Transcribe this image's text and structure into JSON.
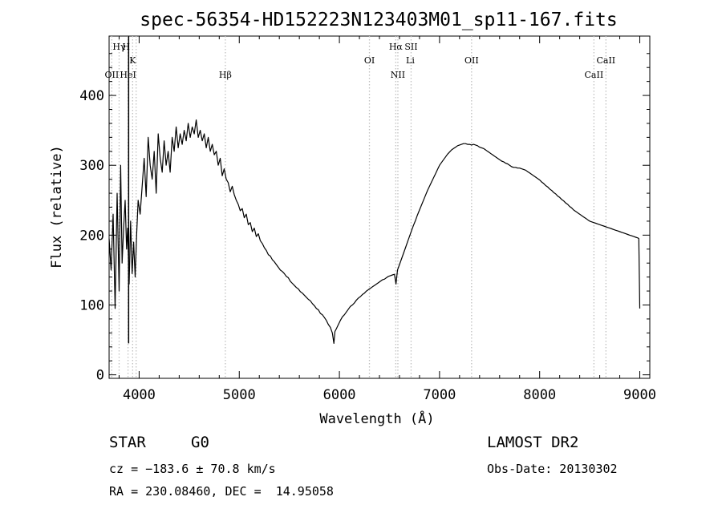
{
  "chart_data": {
    "type": "line",
    "title": "spec-56354-HD152223N123403M01_sp11-167.fits",
    "xlabel": "Wavelength (Å)",
    "ylabel": "Flux (relative)",
    "xlim": [
      3700,
      9100
    ],
    "ylim": [
      -5,
      485
    ],
    "xticks": [
      4000,
      5000,
      6000,
      7000,
      8000,
      9000
    ],
    "yticks": [
      0,
      100,
      200,
      300,
      400
    ],
    "grid": false,
    "series": [
      {
        "points": [
          [
            3700,
            195
          ],
          [
            3720,
            150
          ],
          [
            3740,
            230
          ],
          [
            3760,
            95
          ],
          [
            3780,
            260
          ],
          [
            3800,
            120
          ],
          [
            3815,
            300
          ],
          [
            3830,
            160
          ],
          [
            3845,
            210
          ],
          [
            3860,
            250
          ],
          [
            3875,
            180
          ],
          [
            3885,
            210
          ],
          [
            3900,
            130
          ],
          [
            3915,
            220
          ],
          [
            3930,
            145
          ],
          [
            3945,
            190
          ],
          [
            3960,
            140
          ],
          [
            3975,
            200
          ],
          [
            3990,
            250
          ],
          [
            4010,
            230
          ],
          [
            4030,
            270
          ],
          [
            4050,
            310
          ],
          [
            4070,
            255
          ],
          [
            4090,
            340
          ],
          [
            4110,
            300
          ],
          [
            4130,
            280
          ],
          [
            4150,
            320
          ],
          [
            4170,
            260
          ],
          [
            4190,
            345
          ],
          [
            4210,
            310
          ],
          [
            4230,
            290
          ],
          [
            4250,
            335
          ],
          [
            4270,
            300
          ],
          [
            4290,
            320
          ],
          [
            4310,
            290
          ],
          [
            4330,
            340
          ],
          [
            4350,
            320
          ],
          [
            4370,
            355
          ],
          [
            4390,
            325
          ],
          [
            4410,
            345
          ],
          [
            4430,
            330
          ],
          [
            4450,
            350
          ],
          [
            4470,
            335
          ],
          [
            4490,
            360
          ],
          [
            4510,
            340
          ],
          [
            4530,
            355
          ],
          [
            4550,
            345
          ],
          [
            4570,
            365
          ],
          [
            4590,
            340
          ],
          [
            4610,
            350
          ],
          [
            4630,
            335
          ],
          [
            4650,
            345
          ],
          [
            4670,
            325
          ],
          [
            4690,
            340
          ],
          [
            4710,
            320
          ],
          [
            4730,
            330
          ],
          [
            4750,
            315
          ],
          [
            4770,
            320
          ],
          [
            4790,
            300
          ],
          [
            4810,
            310
          ],
          [
            4830,
            285
          ],
          [
            4850,
            295
          ],
          [
            4870,
            280
          ],
          [
            4890,
            275
          ],
          [
            4910,
            262
          ],
          [
            4930,
            270
          ],
          [
            4950,
            258
          ],
          [
            4970,
            250
          ],
          [
            4990,
            244
          ],
          [
            5010,
            235
          ],
          [
            5030,
            238
          ],
          [
            5050,
            225
          ],
          [
            5070,
            230
          ],
          [
            5090,
            215
          ],
          [
            5110,
            218
          ],
          [
            5130,
            205
          ],
          [
            5150,
            210
          ],
          [
            5170,
            198
          ],
          [
            5190,
            202
          ],
          [
            5210,
            192
          ],
          [
            5230,
            188
          ],
          [
            5250,
            182
          ],
          [
            5270,
            178
          ],
          [
            5290,
            172
          ],
          [
            5310,
            170
          ],
          [
            5330,
            165
          ],
          [
            5350,
            162
          ],
          [
            5370,
            158
          ],
          [
            5390,
            154
          ],
          [
            5410,
            150
          ],
          [
            5430,
            148
          ],
          [
            5450,
            145
          ],
          [
            5470,
            141
          ],
          [
            5490,
            139
          ],
          [
            5510,
            134
          ],
          [
            5530,
            131
          ],
          [
            5550,
            128
          ],
          [
            5570,
            125
          ],
          [
            5590,
            123
          ],
          [
            5610,
            119
          ],
          [
            5630,
            117
          ],
          [
            5650,
            114
          ],
          [
            5670,
            111
          ],
          [
            5690,
            108
          ],
          [
            5710,
            106
          ],
          [
            5730,
            102
          ],
          [
            5750,
            99
          ],
          [
            5770,
            95
          ],
          [
            5790,
            93
          ],
          [
            5810,
            88
          ],
          [
            5830,
            86
          ],
          [
            5850,
            82
          ],
          [
            5870,
            78
          ],
          [
            5890,
            72
          ],
          [
            5910,
            68
          ],
          [
            5930,
            60
          ],
          [
            5945,
            45
          ],
          [
            5955,
            62
          ],
          [
            5970,
            66
          ],
          [
            5990,
            72
          ],
          [
            6010,
            78
          ],
          [
            6030,
            83
          ],
          [
            6050,
            86
          ],
          [
            6070,
            90
          ],
          [
            6090,
            94
          ],
          [
            6110,
            98
          ],
          [
            6130,
            100
          ],
          [
            6150,
            103
          ],
          [
            6170,
            107
          ],
          [
            6190,
            110
          ],
          [
            6210,
            112
          ],
          [
            6230,
            115
          ],
          [
            6250,
            117
          ],
          [
            6270,
            120
          ],
          [
            6290,
            122
          ],
          [
            6310,
            124
          ],
          [
            6330,
            126
          ],
          [
            6350,
            128
          ],
          [
            6370,
            130
          ],
          [
            6390,
            132
          ],
          [
            6410,
            134
          ],
          [
            6430,
            136
          ],
          [
            6450,
            137
          ],
          [
            6470,
            139
          ],
          [
            6490,
            141
          ],
          [
            6510,
            142
          ],
          [
            6530,
            143
          ],
          [
            6550,
            144
          ],
          [
            6565,
            130
          ],
          [
            6580,
            150
          ],
          [
            6600,
            158
          ],
          [
            6620,
            166
          ],
          [
            6640,
            174
          ],
          [
            6660,
            182
          ],
          [
            6680,
            190
          ],
          [
            6700,
            198
          ],
          [
            6720,
            206
          ],
          [
            6740,
            214
          ],
          [
            6760,
            221
          ],
          [
            6780,
            229
          ],
          [
            6800,
            236
          ],
          [
            6820,
            243
          ],
          [
            6840,
            250
          ],
          [
            6860,
            257
          ],
          [
            6880,
            264
          ],
          [
            6900,
            270
          ],
          [
            6920,
            276
          ],
          [
            6940,
            282
          ],
          [
            6960,
            288
          ],
          [
            6980,
            294
          ],
          [
            7000,
            300
          ],
          [
            7020,
            304
          ],
          [
            7040,
            308
          ],
          [
            7060,
            312
          ],
          [
            7080,
            316
          ],
          [
            7100,
            319
          ],
          [
            7120,
            322
          ],
          [
            7140,
            324
          ],
          [
            7160,
            326
          ],
          [
            7180,
            328
          ],
          [
            7200,
            329
          ],
          [
            7220,
            330
          ],
          [
            7240,
            331
          ],
          [
            7260,
            331
          ],
          [
            7280,
            330
          ],
          [
            7300,
            330
          ],
          [
            7320,
            329
          ],
          [
            7340,
            330
          ],
          [
            7360,
            329
          ],
          [
            7380,
            328
          ],
          [
            7400,
            326
          ],
          [
            7420,
            325
          ],
          [
            7440,
            324
          ],
          [
            7460,
            322
          ],
          [
            7480,
            320
          ],
          [
            7500,
            318
          ],
          [
            7520,
            316
          ],
          [
            7540,
            314
          ],
          [
            7560,
            312
          ],
          [
            7580,
            310
          ],
          [
            7600,
            308
          ],
          [
            7620,
            306
          ],
          [
            7640,
            305
          ],
          [
            7660,
            303
          ],
          [
            7680,
            302
          ],
          [
            7700,
            300
          ],
          [
            7720,
            298
          ],
          [
            7740,
            297
          ],
          [
            7760,
            297
          ],
          [
            7780,
            296
          ],
          [
            7800,
            296
          ],
          [
            7820,
            295
          ],
          [
            7840,
            294
          ],
          [
            7860,
            293
          ],
          [
            7880,
            291
          ],
          [
            7900,
            289
          ],
          [
            7920,
            287
          ],
          [
            7940,
            285
          ],
          [
            7960,
            283
          ],
          [
            7980,
            281
          ],
          [
            8000,
            279
          ],
          [
            8020,
            276
          ],
          [
            8040,
            274
          ],
          [
            8060,
            271
          ],
          [
            8080,
            269
          ],
          [
            8100,
            266
          ],
          [
            8120,
            264
          ],
          [
            8140,
            261
          ],
          [
            8160,
            259
          ],
          [
            8180,
            256
          ],
          [
            8200,
            254
          ],
          [
            8220,
            251
          ],
          [
            8240,
            249
          ],
          [
            8260,
            246
          ],
          [
            8280,
            244
          ],
          [
            8300,
            241
          ],
          [
            8320,
            239
          ],
          [
            8340,
            236
          ],
          [
            8360,
            234
          ],
          [
            8380,
            232
          ],
          [
            8400,
            230
          ],
          [
            8420,
            228
          ],
          [
            8440,
            226
          ],
          [
            8460,
            224
          ],
          [
            8480,
            222
          ],
          [
            8500,
            220
          ],
          [
            8520,
            219
          ],
          [
            8540,
            218
          ],
          [
            8560,
            217
          ],
          [
            8580,
            216
          ],
          [
            8600,
            215
          ],
          [
            8620,
            214
          ],
          [
            8640,
            213
          ],
          [
            8660,
            212
          ],
          [
            8680,
            211
          ],
          [
            8700,
            210
          ],
          [
            8720,
            209
          ],
          [
            8740,
            208
          ],
          [
            8760,
            207
          ],
          [
            8780,
            206
          ],
          [
            8800,
            205
          ],
          [
            8820,
            204
          ],
          [
            8840,
            203
          ],
          [
            8860,
            202
          ],
          [
            8880,
            201
          ],
          [
            8900,
            200
          ],
          [
            8920,
            199
          ],
          [
            8940,
            198
          ],
          [
            8960,
            197
          ],
          [
            8980,
            196
          ],
          [
            8990,
            195
          ],
          [
            9000,
            95
          ]
        ]
      }
    ],
    "spectral_lines": [
      {
        "name": "Hγ",
        "wavelength": 3800,
        "row": 1
      },
      {
        "name": "H",
        "wavelength": 3870,
        "row": 1
      },
      {
        "name": "K",
        "wavelength": 3935,
        "row": 2
      },
      {
        "name": "OII",
        "wavelength": 3727,
        "row": 3
      },
      {
        "name": "HeI",
        "wavelength": 3889,
        "row": 3
      },
      {
        "name": "Hβ",
        "wavelength": 4861,
        "row": 3
      },
      {
        "name": "OI",
        "wavelength": 6300,
        "row": 2
      },
      {
        "name": "Hα",
        "wavelength": 6563,
        "row": 1
      },
      {
        "name": "SII",
        "wavelength": 6716,
        "row": 1
      },
      {
        "name": "NII",
        "wavelength": 6584,
        "row": 3
      },
      {
        "name": "Li",
        "wavelength": 6708,
        "row": 2
      },
      {
        "name": "OII",
        "wavelength": 7320,
        "row": 2
      },
      {
        "name": "CaII",
        "wavelength": 8662,
        "row": 2
      },
      {
        "name": "CaII",
        "wavelength": 8542,
        "row": 3
      }
    ],
    "line_marker_wavelengths": [
      3727,
      3800,
      3889,
      3935,
      3970,
      4861,
      6300,
      6563,
      6584,
      6716,
      7320,
      8542,
      8662
    ],
    "line_colors": {
      "spectrum": "#000000",
      "markers": "#c0c0c0"
    }
  },
  "info": {
    "object_type": "STAR",
    "subclass": "G0",
    "survey": "LAMOST DR2",
    "cz": "cz = −183.6 ± 70.8 km/s",
    "obs_date": "Obs-Date: 20130302",
    "coords": "RA = 230.08460, DEC =  14.95058"
  }
}
